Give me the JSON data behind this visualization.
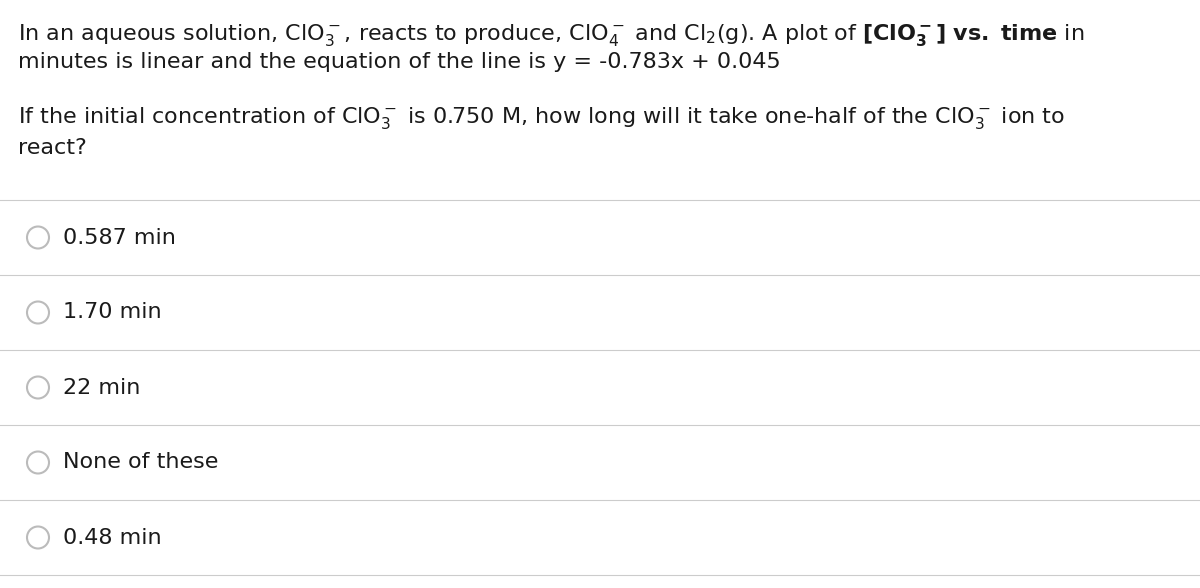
{
  "background_color": "#ffffff",
  "text_color": "#1a1a1a",
  "line_color": "#cccccc",
  "line1": "In an aqueous solution, ClO$_3^-$, reacts to produce, ClO$_4^-$ and Cl$_2$(g). A plot of $\\mathbf{[ClO_3^-]}$ $\\bf{vs.}$ $\\bf{time}$ in",
  "line2": "minutes is linear and the equation of the line is y = -0.783x + 0.045",
  "line3": "If the initial concentration of ClO$_3^-$ is 0.750 M, how long will it take one-half of the ClO$_3^-$ ion to",
  "line4": "react?",
  "choices": [
    "0.587 min",
    "1.70 min",
    "22 min",
    "None of these",
    "0.48 min"
  ],
  "body_fontsize": 16,
  "choice_fontsize": 16,
  "circle_color": "#bbbbbb",
  "fig_width": 12.0,
  "fig_height": 5.88,
  "dpi": 100
}
